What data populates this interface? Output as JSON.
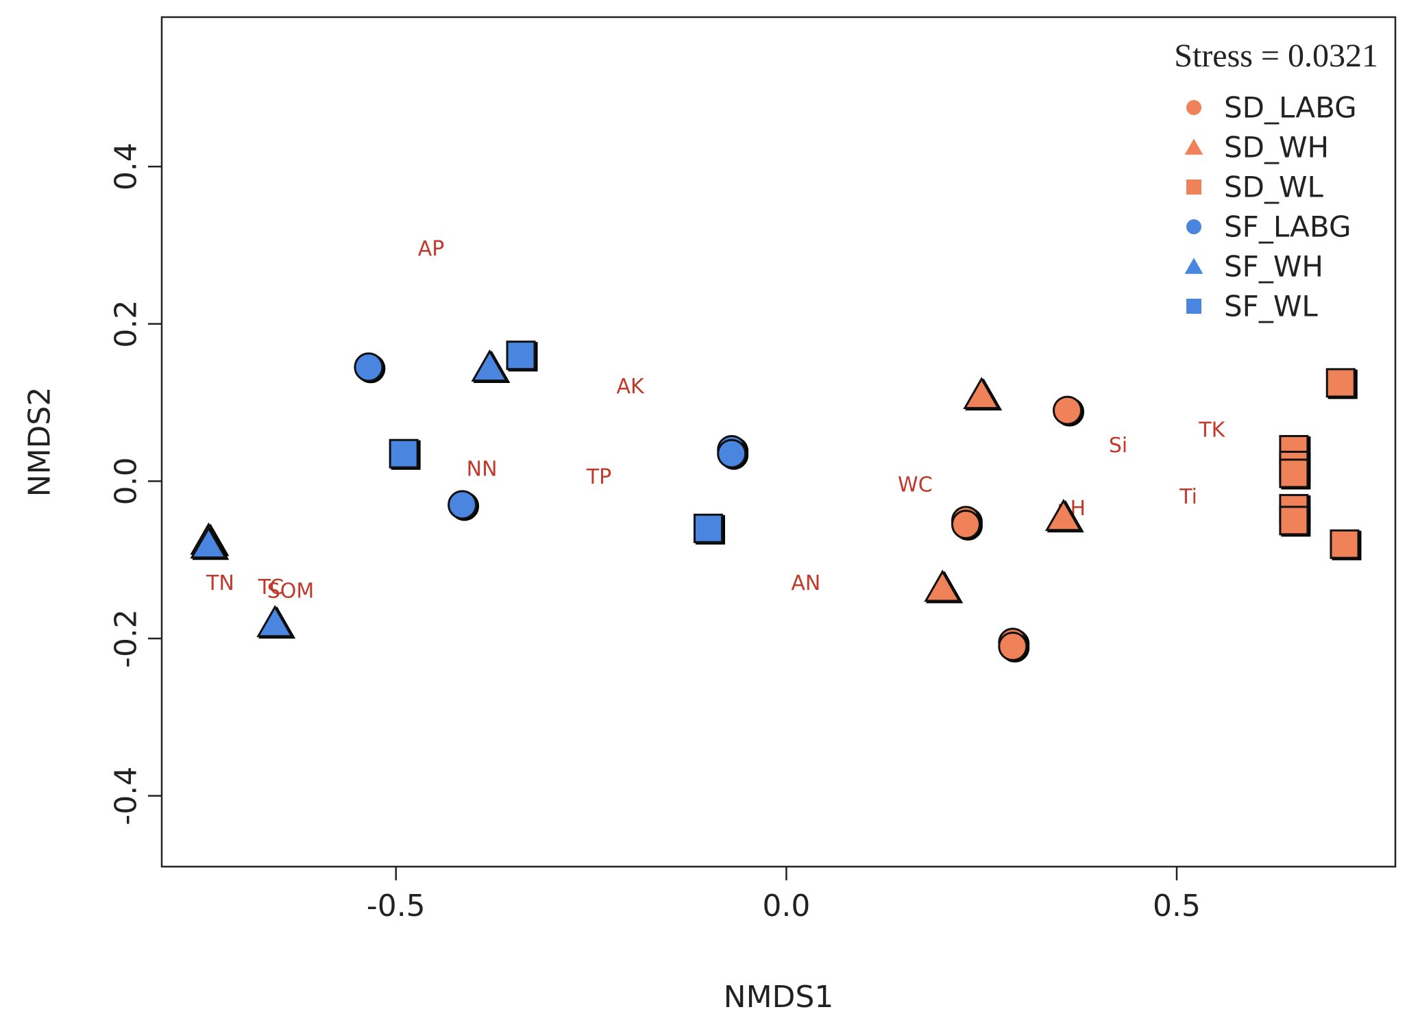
{
  "chart_data": {
    "type": "scatter",
    "title": "",
    "xlabel": "NMDS1",
    "ylabel": "NMDS2",
    "xlim": [
      -0.8,
      0.78
    ],
    "ylim": [
      -0.49,
      0.59
    ],
    "x_ticks": [
      -0.5,
      0.0,
      0.5
    ],
    "x_tick_labels": [
      "-0.5",
      "0.0",
      "0.5"
    ],
    "y_ticks": [
      -0.4,
      -0.2,
      0.0,
      0.2,
      0.4
    ],
    "y_tick_labels": [
      "-0.4",
      "-0.2",
      "0.0",
      "0.2",
      "0.4"
    ],
    "stress_text": "Stress = 0.0321",
    "legend_position": "top-right",
    "colors": {
      "SD": "#f0825a",
      "SF": "#4a86e0",
      "env": "#c0392b"
    },
    "series": [
      {
        "name": "SD_LABG",
        "shape": "circle",
        "color": "#f0825a",
        "points": [
          [
            0.36,
            0.09
          ],
          [
            0.23,
            -0.05
          ],
          [
            0.23,
            -0.055
          ],
          [
            0.29,
            -0.205
          ],
          [
            0.29,
            -0.21
          ]
        ]
      },
      {
        "name": "SD_WH",
        "shape": "triangle",
        "color": "#f0825a",
        "points": [
          [
            0.25,
            0.11
          ],
          [
            0.355,
            -0.045
          ],
          [
            0.2,
            -0.135
          ]
        ]
      },
      {
        "name": "SD_WL",
        "shape": "square",
        "color": "#f0825a",
        "points": [
          [
            0.71,
            0.125
          ],
          [
            0.65,
            0.04
          ],
          [
            0.65,
            0.02
          ],
          [
            0.65,
            0.01
          ],
          [
            0.65,
            -0.035
          ],
          [
            0.65,
            -0.05
          ],
          [
            0.715,
            -0.08
          ]
        ]
      },
      {
        "name": "SF_LABG",
        "shape": "circle",
        "color": "#4a86e0",
        "points": [
          [
            -0.535,
            0.145
          ],
          [
            -0.415,
            -0.03
          ],
          [
            -0.07,
            0.04
          ],
          [
            -0.07,
            0.035
          ]
        ]
      },
      {
        "name": "SF_WH",
        "shape": "triangle",
        "color": "#4a86e0",
        "points": [
          [
            -0.38,
            0.145
          ],
          [
            -0.74,
            -0.075
          ],
          [
            -0.74,
            -0.08
          ],
          [
            -0.655,
            -0.18
          ]
        ]
      },
      {
        "name": "SF_WL",
        "shape": "square",
        "color": "#4a86e0",
        "points": [
          [
            -0.34,
            0.16
          ],
          [
            -0.49,
            0.035
          ],
          [
            -0.1,
            -0.06
          ]
        ]
      }
    ],
    "env_factors": [
      {
        "label": "AP",
        "x": -0.455,
        "y": 0.295
      },
      {
        "label": "AK",
        "x": -0.2,
        "y": 0.12
      },
      {
        "label": "NN",
        "x": -0.39,
        "y": 0.015
      },
      {
        "label": "TP",
        "x": -0.24,
        "y": 0.005
      },
      {
        "label": "WC",
        "x": 0.165,
        "y": -0.005
      },
      {
        "label": "AN",
        "x": 0.025,
        "y": -0.13
      },
      {
        "label": "TN",
        "x": -0.725,
        "y": -0.13
      },
      {
        "label": "TC",
        "x": -0.66,
        "y": -0.135
      },
      {
        "label": "SOM",
        "x": -0.635,
        "y": -0.14
      },
      {
        "label": "pH",
        "x": 0.365,
        "y": -0.035
      },
      {
        "label": "Si",
        "x": 0.425,
        "y": 0.045
      },
      {
        "label": "TK",
        "x": 0.545,
        "y": 0.065
      },
      {
        "label": "Ti",
        "x": 0.515,
        "y": -0.02
      }
    ]
  }
}
